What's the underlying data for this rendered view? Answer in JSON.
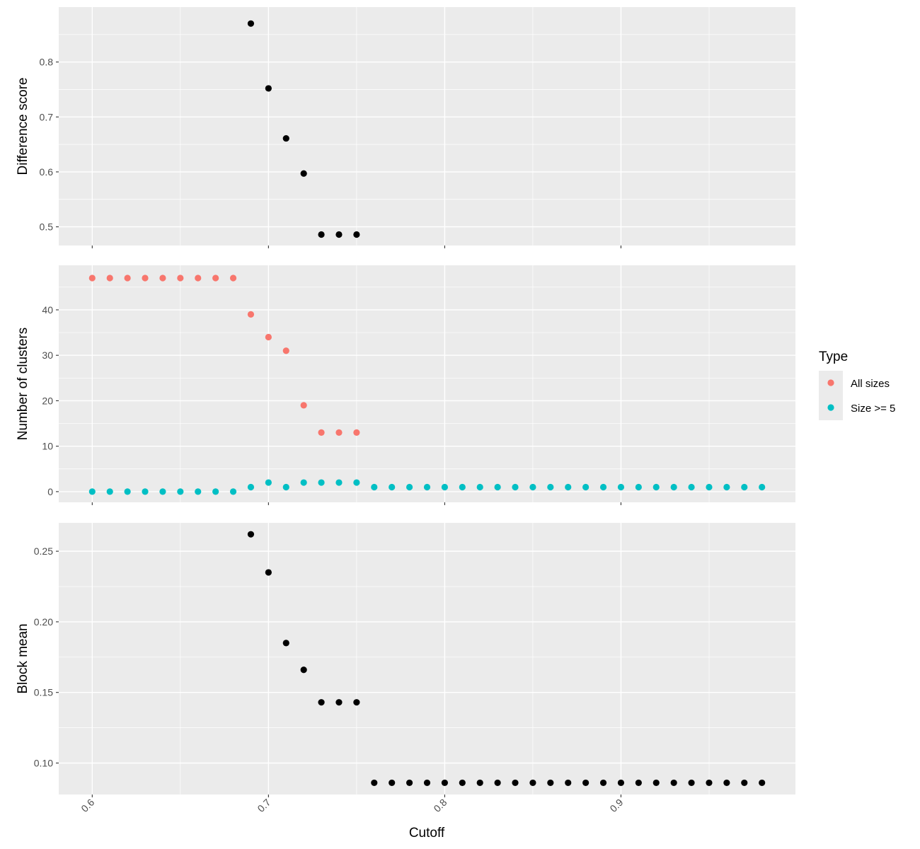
{
  "chart_data": {
    "type": "scatter",
    "xlabel": "Cutoff",
    "xlim": [
      0.581,
      0.999
    ],
    "x_ticks": [
      "0.6",
      "0.7",
      "0.8",
      "0.9"
    ],
    "colors": {
      "panel_bg": "#ebebeb",
      "grid": "#ffffff",
      "black_points": "#000000",
      "all_sizes": "#f8766d",
      "size_ge_5": "#00bfc4"
    },
    "legend": {
      "title": "Type",
      "position": "right",
      "entries": [
        {
          "label": "All sizes",
          "color": "#f8766d"
        },
        {
          "label": "Size >= 5",
          "color": "#00bfc4"
        }
      ]
    },
    "panels": [
      {
        "ylabel": "Difference score",
        "ylim": [
          0.466,
          0.9
        ],
        "y_ticks": [
          "0.5",
          "0.6",
          "0.7",
          "0.8"
        ],
        "series": [
          {
            "color": "#000000",
            "points": [
              [
                0.69,
                0.87
              ],
              [
                0.7,
                0.752
              ],
              [
                0.71,
                0.661
              ],
              [
                0.72,
                0.597
              ],
              [
                0.73,
                0.486
              ],
              [
                0.74,
                0.486
              ],
              [
                0.75,
                0.486
              ]
            ]
          }
        ]
      },
      {
        "ylabel": "Number of clusters",
        "ylim": [
          -2.35,
          49.8
        ],
        "y_ticks": [
          "0",
          "10",
          "20",
          "30",
          "40"
        ],
        "series": [
          {
            "name": "All sizes",
            "color": "#f8766d",
            "points": [
              [
                0.6,
                47
              ],
              [
                0.61,
                47
              ],
              [
                0.62,
                47
              ],
              [
                0.63,
                47
              ],
              [
                0.64,
                47
              ],
              [
                0.65,
                47
              ],
              [
                0.66,
                47
              ],
              [
                0.67,
                47
              ],
              [
                0.68,
                47
              ],
              [
                0.69,
                39
              ],
              [
                0.7,
                34
              ],
              [
                0.71,
                31
              ],
              [
                0.72,
                19
              ],
              [
                0.73,
                13
              ],
              [
                0.74,
                13
              ],
              [
                0.75,
                13
              ]
            ]
          },
          {
            "name": "Size >= 5",
            "color": "#00bfc4",
            "points": [
              [
                0.6,
                0
              ],
              [
                0.61,
                0
              ],
              [
                0.62,
                0
              ],
              [
                0.63,
                0
              ],
              [
                0.64,
                0
              ],
              [
                0.65,
                0
              ],
              [
                0.66,
                0
              ],
              [
                0.67,
                0
              ],
              [
                0.68,
                0
              ],
              [
                0.69,
                1
              ],
              [
                0.7,
                2
              ],
              [
                0.71,
                1
              ],
              [
                0.72,
                2
              ],
              [
                0.73,
                2
              ],
              [
                0.74,
                2
              ],
              [
                0.75,
                2
              ],
              [
                0.76,
                1
              ],
              [
                0.77,
                1
              ],
              [
                0.78,
                1
              ],
              [
                0.79,
                1
              ],
              [
                0.8,
                1
              ],
              [
                0.81,
                1
              ],
              [
                0.82,
                1
              ],
              [
                0.83,
                1
              ],
              [
                0.84,
                1
              ],
              [
                0.85,
                1
              ],
              [
                0.86,
                1
              ],
              [
                0.87,
                1
              ],
              [
                0.88,
                1
              ],
              [
                0.89,
                1
              ],
              [
                0.9,
                1
              ],
              [
                0.91,
                1
              ],
              [
                0.92,
                1
              ],
              [
                0.93,
                1
              ],
              [
                0.94,
                1
              ],
              [
                0.95,
                1
              ],
              [
                0.96,
                1
              ],
              [
                0.97,
                1
              ],
              [
                0.98,
                1
              ]
            ]
          }
        ]
      },
      {
        "ylabel": "Block mean",
        "ylim": [
          0.0777,
          0.2701
        ],
        "y_ticks": [
          "0.10",
          "0.15",
          "0.20",
          "0.25"
        ],
        "series": [
          {
            "color": "#000000",
            "points": [
              [
                0.69,
                0.262
              ],
              [
                0.7,
                0.235
              ],
              [
                0.71,
                0.185
              ],
              [
                0.72,
                0.166
              ],
              [
                0.73,
                0.143
              ],
              [
                0.74,
                0.143
              ],
              [
                0.75,
                0.143
              ],
              [
                0.76,
                0.086
              ],
              [
                0.77,
                0.086
              ],
              [
                0.78,
                0.086
              ],
              [
                0.79,
                0.086
              ],
              [
                0.8,
                0.086
              ],
              [
                0.81,
                0.086
              ],
              [
                0.82,
                0.086
              ],
              [
                0.83,
                0.086
              ],
              [
                0.84,
                0.086
              ],
              [
                0.85,
                0.086
              ],
              [
                0.86,
                0.086
              ],
              [
                0.87,
                0.086
              ],
              [
                0.88,
                0.086
              ],
              [
                0.89,
                0.086
              ],
              [
                0.9,
                0.086
              ],
              [
                0.91,
                0.086
              ],
              [
                0.92,
                0.086
              ],
              [
                0.93,
                0.086
              ],
              [
                0.94,
                0.086
              ],
              [
                0.95,
                0.086
              ],
              [
                0.96,
                0.086
              ],
              [
                0.97,
                0.086
              ],
              [
                0.98,
                0.086
              ]
            ]
          }
        ]
      }
    ]
  }
}
